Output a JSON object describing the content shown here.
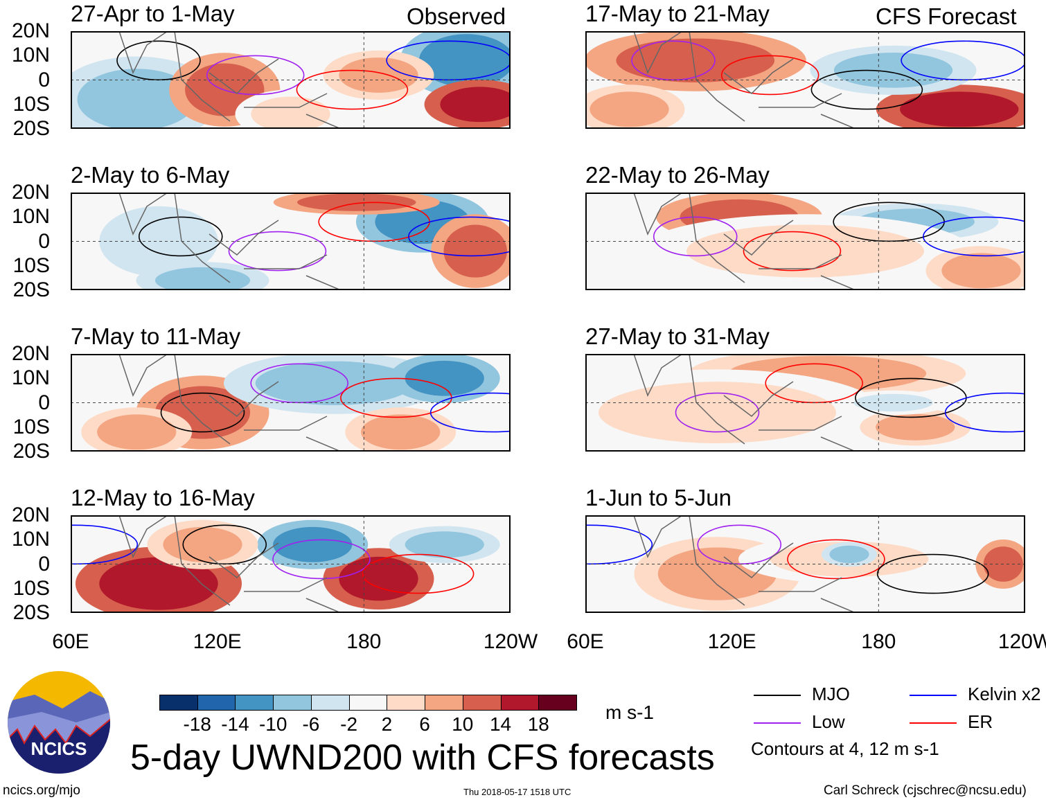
{
  "chart_data": {
    "type": "heatmap",
    "title": "5-day UWND200 with CFS forecasts",
    "variable": "200-hPa zonal wind anomaly",
    "units": "m s-1",
    "column_labels": {
      "left": "Observed",
      "right": "CFS Forecast"
    },
    "panels": [
      {
        "title": "27-Apr to 1-May",
        "column": "Observed"
      },
      {
        "title": "2-May to 6-May",
        "column": "Observed"
      },
      {
        "title": "7-May to 11-May",
        "column": "Observed"
      },
      {
        "title": "12-May to 16-May",
        "column": "Observed"
      },
      {
        "title": "17-May to 21-May",
        "column": "CFS Forecast"
      },
      {
        "title": "22-May to 26-May",
        "column": "CFS Forecast"
      },
      {
        "title": "27-May to 31-May",
        "column": "CFS Forecast"
      },
      {
        "title": "1-Jun to 5-Jun",
        "column": "CFS Forecast"
      }
    ],
    "lat_ticks": [
      "20N",
      "10N",
      "0",
      "10S",
      "20S"
    ],
    "lon_ticks": [
      "60E",
      "120E",
      "180",
      "120W"
    ],
    "ylim": [
      -20,
      20
    ],
    "xlim_deg_east": [
      60,
      240
    ],
    "colorbar": {
      "levels": [
        "-18",
        "-14",
        "-10",
        "-6",
        "-2",
        "2",
        "6",
        "10",
        "14",
        "18"
      ],
      "colors": [
        "#08306b",
        "#2166ac",
        "#4393c3",
        "#92c5de",
        "#d1e5f0",
        "#f7f7f7",
        "#fddbc7",
        "#f4a582",
        "#d6604d",
        "#b2182b",
        "#67001f"
      ],
      "units": "m s-1"
    },
    "legend": [
      {
        "label": "MJO",
        "color": "#000000"
      },
      {
        "label": "Kelvin x2",
        "color": "#0000ff"
      },
      {
        "label": "Low",
        "color": "#a020f0"
      },
      {
        "label": "ER",
        "color": "#ff0000"
      }
    ],
    "contour_note": "Contours at 4, 12 m s-1"
  },
  "footer": {
    "logo_text": "NCICS",
    "url": "ncics.org/mjo",
    "timestamp": "Thu 2018-05-17 1518 UTC",
    "credit": "Carl Schreck (cjschrec@ncsu.edu)"
  }
}
